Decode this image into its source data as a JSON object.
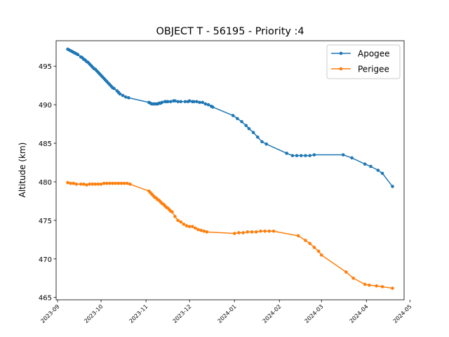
{
  "chart_data": {
    "type": "line",
    "title": "OBJECT T - 56195 - Priority :4",
    "xlabel": "",
    "ylabel": "Altitude (km)",
    "xlim": [
      "2023-08-31",
      "2024-04-27"
    ],
    "ylim": [
      464.7,
      498.3
    ],
    "grid": false,
    "legend_position": "top-right",
    "x_ticks": [
      "2023-09",
      "2023-10",
      "2023-11",
      "2023-12",
      "2024-01",
      "2024-02",
      "2024-03",
      "2024-04",
      "2024-05"
    ],
    "y_ticks": [
      465,
      470,
      475,
      480,
      485,
      490,
      495
    ],
    "series": [
      {
        "name": "Apogee",
        "color": "#1f77b4",
        "points": [
          [
            "2023-09-08",
            497.2
          ],
          [
            "2023-09-09",
            497.1
          ],
          [
            "2023-09-10",
            497.0
          ],
          [
            "2023-09-11",
            496.9
          ],
          [
            "2023-09-12",
            496.8
          ],
          [
            "2023-09-13",
            496.7
          ],
          [
            "2023-09-14",
            496.6
          ],
          [
            "2023-09-15",
            496.5
          ],
          [
            "2023-09-17",
            496.2
          ],
          [
            "2023-09-18",
            496.1
          ],
          [
            "2023-09-19",
            495.9
          ],
          [
            "2023-09-20",
            495.8
          ],
          [
            "2023-09-21",
            495.6
          ],
          [
            "2023-09-22",
            495.5
          ],
          [
            "2023-09-23",
            495.3
          ],
          [
            "2023-09-24",
            495.1
          ],
          [
            "2023-09-25",
            494.9
          ],
          [
            "2023-09-26",
            494.7
          ],
          [
            "2023-09-27",
            494.6
          ],
          [
            "2023-09-28",
            494.4
          ],
          [
            "2023-09-29",
            494.2
          ],
          [
            "2023-09-30",
            494.0
          ],
          [
            "2023-10-01",
            493.8
          ],
          [
            "2023-10-02",
            493.6
          ],
          [
            "2023-10-03",
            493.4
          ],
          [
            "2023-10-04",
            493.2
          ],
          [
            "2023-10-05",
            493.0
          ],
          [
            "2023-10-06",
            492.8
          ],
          [
            "2023-10-07",
            492.6
          ],
          [
            "2023-10-08",
            492.4
          ],
          [
            "2023-10-09",
            492.2
          ],
          [
            "2023-10-10",
            492.1
          ],
          [
            "2023-10-12",
            491.8
          ],
          [
            "2023-10-13",
            491.6
          ],
          [
            "2023-10-14",
            491.4
          ],
          [
            "2023-10-16",
            491.2
          ],
          [
            "2023-10-18",
            491.0
          ],
          [
            "2023-10-20",
            490.9
          ],
          [
            "2023-11-03",
            490.3
          ],
          [
            "2023-11-04",
            490.2
          ],
          [
            "2023-11-05",
            490.1
          ],
          [
            "2023-11-06",
            490.1
          ],
          [
            "2023-11-07",
            490.1
          ],
          [
            "2023-11-08",
            490.1
          ],
          [
            "2023-11-09",
            490.1
          ],
          [
            "2023-11-10",
            490.2
          ],
          [
            "2023-11-11",
            490.2
          ],
          [
            "2023-11-12",
            490.3
          ],
          [
            "2023-11-14",
            490.4
          ],
          [
            "2023-11-15",
            490.4
          ],
          [
            "2023-11-16",
            490.4
          ],
          [
            "2023-11-18",
            490.4
          ],
          [
            "2023-11-20",
            490.5
          ],
          [
            "2023-11-21",
            490.5
          ],
          [
            "2023-11-23",
            490.4
          ],
          [
            "2023-11-25",
            490.4
          ],
          [
            "2023-11-28",
            490.4
          ],
          [
            "2023-11-30",
            490.4
          ],
          [
            "2023-12-01",
            490.5
          ],
          [
            "2023-12-03",
            490.4
          ],
          [
            "2023-12-04",
            490.4
          ],
          [
            "2023-12-06",
            490.4
          ],
          [
            "2023-12-08",
            490.3
          ],
          [
            "2023-12-10",
            490.3
          ],
          [
            "2023-12-12",
            490.1
          ],
          [
            "2023-12-14",
            490.0
          ],
          [
            "2023-12-16",
            489.8
          ],
          [
            "2023-12-17",
            489.7
          ],
          [
            "2023-12-31",
            488.6
          ],
          [
            "2024-01-03",
            488.2
          ],
          [
            "2024-01-06",
            487.8
          ],
          [
            "2024-01-09",
            487.3
          ],
          [
            "2024-01-11",
            486.9
          ],
          [
            "2024-01-14",
            486.4
          ],
          [
            "2024-01-17",
            485.8
          ],
          [
            "2024-01-20",
            485.2
          ],
          [
            "2024-01-23",
            484.9
          ],
          [
            "2024-02-06",
            483.7
          ],
          [
            "2024-02-10",
            483.4
          ],
          [
            "2024-02-13",
            483.4
          ],
          [
            "2024-02-16",
            483.4
          ],
          [
            "2024-02-19",
            483.4
          ],
          [
            "2024-02-22",
            483.4
          ],
          [
            "2024-02-25",
            483.5
          ],
          [
            "2024-03-16",
            483.5
          ],
          [
            "2024-03-22",
            483.1
          ],
          [
            "2024-03-31",
            482.3
          ],
          [
            "2024-04-04",
            482.0
          ],
          [
            "2024-04-09",
            481.5
          ],
          [
            "2024-04-12",
            481.1
          ],
          [
            "2024-04-19",
            479.4
          ]
        ]
      },
      {
        "name": "Perigee",
        "color": "#ff7f0e",
        "points": [
          [
            "2023-09-08",
            479.9
          ],
          [
            "2023-09-10",
            479.8
          ],
          [
            "2023-09-12",
            479.8
          ],
          [
            "2023-09-14",
            479.7
          ],
          [
            "2023-09-17",
            479.7
          ],
          [
            "2023-09-19",
            479.7
          ],
          [
            "2023-09-21",
            479.6
          ],
          [
            "2023-09-23",
            479.7
          ],
          [
            "2023-09-25",
            479.7
          ],
          [
            "2023-09-27",
            479.7
          ],
          [
            "2023-09-29",
            479.7
          ],
          [
            "2023-10-01",
            479.7
          ],
          [
            "2023-10-03",
            479.8
          ],
          [
            "2023-10-05",
            479.8
          ],
          [
            "2023-10-07",
            479.8
          ],
          [
            "2023-10-09",
            479.8
          ],
          [
            "2023-10-11",
            479.8
          ],
          [
            "2023-10-13",
            479.8
          ],
          [
            "2023-10-15",
            479.8
          ],
          [
            "2023-10-17",
            479.8
          ],
          [
            "2023-10-19",
            479.8
          ],
          [
            "2023-10-21",
            479.7
          ],
          [
            "2023-11-03",
            478.8
          ],
          [
            "2023-11-04",
            478.6
          ],
          [
            "2023-11-05",
            478.4
          ],
          [
            "2023-11-06",
            478.2
          ],
          [
            "2023-11-07",
            478.0
          ],
          [
            "2023-11-08",
            477.9
          ],
          [
            "2023-11-09",
            477.7
          ],
          [
            "2023-11-10",
            477.6
          ],
          [
            "2023-11-11",
            477.4
          ],
          [
            "2023-11-12",
            477.2
          ],
          [
            "2023-11-13",
            477.1
          ],
          [
            "2023-11-14",
            476.9
          ],
          [
            "2023-11-15",
            476.7
          ],
          [
            "2023-11-16",
            476.6
          ],
          [
            "2023-11-17",
            476.4
          ],
          [
            "2023-11-18",
            476.2
          ],
          [
            "2023-11-19",
            476.1
          ],
          [
            "2023-11-21",
            475.5
          ],
          [
            "2023-11-23",
            475.0
          ],
          [
            "2023-11-25",
            474.8
          ],
          [
            "2023-11-27",
            474.5
          ],
          [
            "2023-11-29",
            474.3
          ],
          [
            "2023-12-01",
            474.2
          ],
          [
            "2023-12-03",
            474.2
          ],
          [
            "2023-12-05",
            474.0
          ],
          [
            "2023-12-07",
            473.8
          ],
          [
            "2023-12-09",
            473.7
          ],
          [
            "2023-12-11",
            473.6
          ],
          [
            "2023-12-13",
            473.5
          ],
          [
            "2024-01-01",
            473.3
          ],
          [
            "2024-01-04",
            473.4
          ],
          [
            "2024-01-07",
            473.4
          ],
          [
            "2024-01-10",
            473.5
          ],
          [
            "2024-01-13",
            473.5
          ],
          [
            "2024-01-16",
            473.5
          ],
          [
            "2024-01-19",
            473.6
          ],
          [
            "2024-01-22",
            473.6
          ],
          [
            "2024-01-25",
            473.6
          ],
          [
            "2024-01-28",
            473.6
          ],
          [
            "2024-02-14",
            473.0
          ],
          [
            "2024-02-19",
            472.4
          ],
          [
            "2024-02-22",
            472.0
          ],
          [
            "2024-02-25",
            471.5
          ],
          [
            "2024-02-28",
            471.0
          ],
          [
            "2024-03-01",
            470.5
          ],
          [
            "2024-03-18",
            468.3
          ],
          [
            "2024-03-23",
            467.5
          ],
          [
            "2024-03-31",
            466.7
          ],
          [
            "2024-04-03",
            466.6
          ],
          [
            "2024-04-08",
            466.5
          ],
          [
            "2024-04-12",
            466.4
          ],
          [
            "2024-04-19",
            466.2
          ]
        ]
      }
    ]
  }
}
